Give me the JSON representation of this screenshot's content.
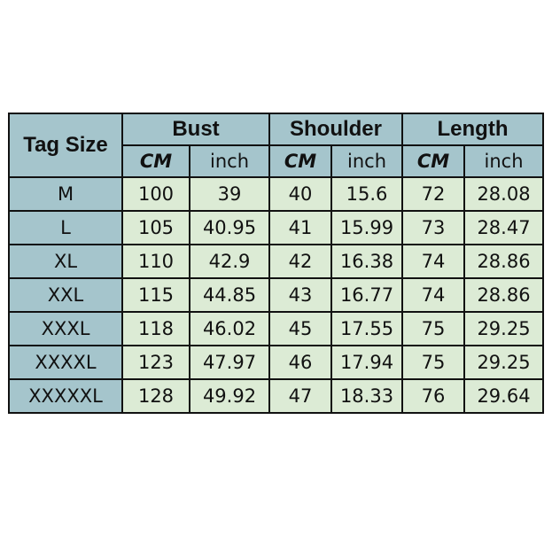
{
  "header": {
    "tag_size": "Tag Size",
    "groups": [
      "Bust",
      "Shoulder",
      "Length"
    ],
    "units": [
      "CM",
      "inch",
      "CM",
      "inch",
      "CM",
      "inch"
    ]
  },
  "rows": [
    [
      "M",
      "100",
      "39",
      "40",
      "15.6",
      "72",
      "28.08"
    ],
    [
      "L",
      "105",
      "40.95",
      "41",
      "15.99",
      "73",
      "28.47"
    ],
    [
      "XL",
      "110",
      "42.9",
      "42",
      "16.38",
      "74",
      "28.86"
    ],
    [
      "XXL",
      "115",
      "44.85",
      "43",
      "16.77",
      "74",
      "28.86"
    ],
    [
      "XXXL",
      "118",
      "46.02",
      "45",
      "17.55",
      "75",
      "29.25"
    ],
    [
      "XXXXL",
      "123",
      "47.97",
      "46",
      "17.94",
      "75",
      "29.25"
    ],
    [
      "XXXXXL",
      "128",
      "49.92",
      "47",
      "18.33",
      "76",
      "29.64"
    ]
  ],
  "colors": {
    "header": "#a5c5cc",
    "body": "#dcebd5",
    "border": "#111111"
  }
}
